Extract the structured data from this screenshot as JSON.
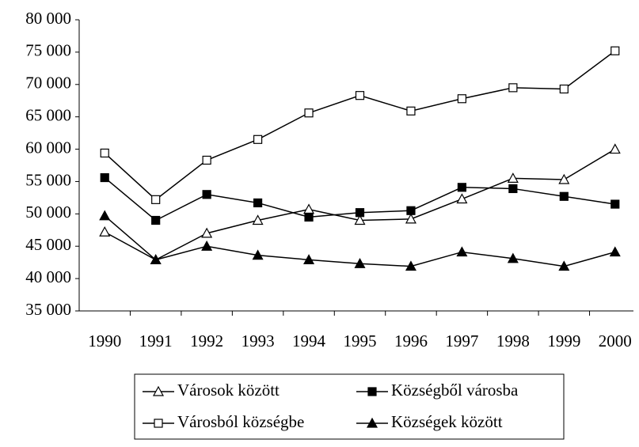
{
  "chart_data": {
    "type": "line",
    "categories": [
      "1990",
      "1991",
      "1992",
      "1993",
      "1994",
      "1995",
      "1996",
      "1997",
      "1998",
      "1999",
      "2000"
    ],
    "series": [
      {
        "name": "Városok között",
        "color": "#000000",
        "marker": "triangle-open",
        "values": [
          47200,
          42900,
          47000,
          49000,
          50700,
          49000,
          49200,
          52300,
          55500,
          55300,
          60000
        ]
      },
      {
        "name": "Községből városba",
        "color": "#000000",
        "marker": "square-filled",
        "values": [
          55600,
          49000,
          53000,
          51700,
          49500,
          50200,
          50500,
          54100,
          53900,
          52700,
          51500
        ]
      },
      {
        "name": "Városból községbe",
        "color": "#000000",
        "marker": "square-open",
        "values": [
          59400,
          52200,
          58300,
          61500,
          65600,
          68300,
          65900,
          67800,
          69500,
          69300,
          75200
        ]
      },
      {
        "name": "Községek között",
        "color": "#000000",
        "marker": "triangle-filled",
        "values": [
          49700,
          42900,
          45000,
          43600,
          42900,
          42300,
          41900,
          44100,
          43100,
          41900,
          44100
        ]
      }
    ],
    "ylim": [
      35000,
      80000
    ],
    "yticks": [
      {
        "value": 35000,
        "label": "35 000"
      },
      {
        "value": 40000,
        "label": "40 000"
      },
      {
        "value": 45000,
        "label": "45 000"
      },
      {
        "value": 50000,
        "label": "50 000"
      },
      {
        "value": 55000,
        "label": "55 000"
      },
      {
        "value": 60000,
        "label": "60 000"
      },
      {
        "value": 65000,
        "label": "65 000"
      },
      {
        "value": 70000,
        "label": "70 000"
      },
      {
        "value": 75000,
        "label": "75 000"
      },
      {
        "value": 80000,
        "label": "80 000"
      }
    ],
    "grid": false,
    "legend": "bottom"
  }
}
